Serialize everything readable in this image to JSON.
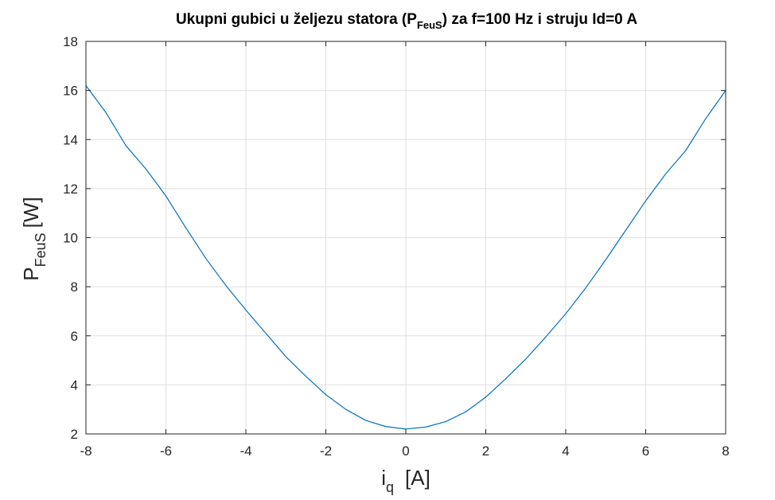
{
  "chart_data": {
    "type": "line",
    "title": {
      "prefix": "Ukupni gubici u željezu statora (P",
      "subscript": "FeuS",
      "suffix": ") za f=100 Hz i struju Id=0 A"
    },
    "xlabel": {
      "main": "i",
      "subscript": "q",
      "unit": "[A]"
    },
    "ylabel": {
      "main": "P",
      "subscript": "FeuS",
      "unit": "[W]"
    },
    "xlim": [
      -8,
      8
    ],
    "ylim": [
      2,
      18
    ],
    "xticks": [
      -8,
      -6,
      -4,
      -2,
      0,
      2,
      4,
      6,
      8
    ],
    "yticks": [
      2,
      4,
      6,
      8,
      10,
      12,
      14,
      16,
      18
    ],
    "grid": true,
    "series": [
      {
        "color": "#0072bd",
        "x": [
          -8,
          -7.5,
          -7,
          -6.5,
          -6,
          -5.5,
          -5,
          -4.5,
          -4,
          -3.5,
          -3,
          -2.5,
          -2,
          -1.5,
          -1,
          -0.5,
          0,
          0.5,
          1,
          1.5,
          2,
          2.5,
          3,
          3.5,
          4,
          4.5,
          5,
          5.5,
          6,
          6.5,
          7,
          7.5,
          8
        ],
        "y": [
          16.2,
          15.1,
          13.75,
          12.8,
          11.7,
          10.4,
          9.15,
          8.05,
          7.05,
          6.1,
          5.15,
          4.35,
          3.6,
          3.0,
          2.55,
          2.3,
          2.2,
          2.28,
          2.5,
          2.9,
          3.5,
          4.25,
          5.05,
          5.95,
          6.9,
          7.95,
          9.1,
          10.3,
          11.5,
          12.6,
          13.55,
          14.85,
          16.0
        ]
      }
    ]
  }
}
